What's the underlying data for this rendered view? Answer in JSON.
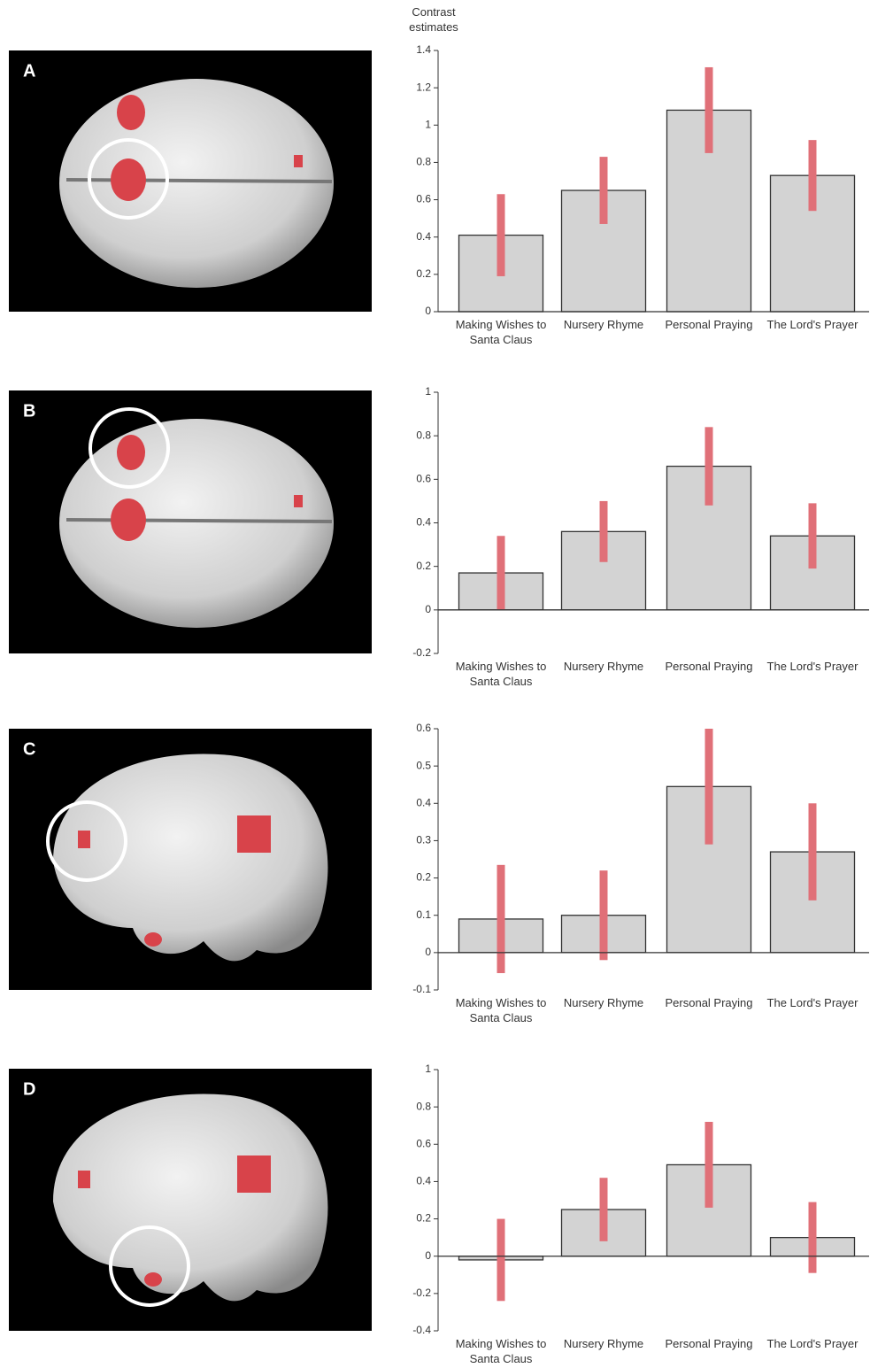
{
  "chart_data": [
    {
      "type": "bar",
      "panel": "A",
      "ylabel": "Contrast estimates",
      "categories": [
        "Making Wishes to Santa Claus",
        "Nursery Rhyme",
        "Personal Praying",
        "The Lord's Prayer"
      ],
      "values": [
        0.41,
        0.65,
        1.08,
        0.73
      ],
      "errors": [
        0.22,
        0.18,
        0.23,
        0.19
      ],
      "color": "#d3d3d3",
      "error_color": "#e07078",
      "ylim": [
        0,
        1.4
      ],
      "yticks": [
        0,
        0.2,
        0.4,
        0.6,
        0.8,
        1,
        1.2,
        1.4
      ]
    },
    {
      "type": "bar",
      "panel": "B",
      "categories": [
        "Making Wishes to Santa Claus",
        "Nursery Rhyme",
        "Personal Praying",
        "The Lord's Prayer"
      ],
      "values": [
        0.17,
        0.36,
        0.66,
        0.34
      ],
      "errors": [
        0.17,
        0.14,
        0.18,
        0.15
      ],
      "color": "#d3d3d3",
      "error_color": "#e07078",
      "ylim": [
        -0.2,
        1
      ],
      "yticks": [
        -0.2,
        0,
        0.2,
        0.4,
        0.6,
        0.8,
        1
      ]
    },
    {
      "type": "bar",
      "panel": "C",
      "categories": [
        "Making Wishes to Santa Claus",
        "Nursery Rhyme",
        "Personal Praying",
        "The Lord's Prayer"
      ],
      "values": [
        0.09,
        0.1,
        0.445,
        0.27
      ],
      "errors": [
        0.145,
        0.12,
        0.155,
        0.13
      ],
      "color": "#d3d3d3",
      "error_color": "#e07078",
      "ylim": [
        -0.1,
        0.6
      ],
      "yticks": [
        -0.1,
        0,
        0.1,
        0.2,
        0.3,
        0.4,
        0.5,
        0.6
      ]
    },
    {
      "type": "bar",
      "panel": "D",
      "categories": [
        "Making Wishes to Santa Claus",
        "Nursery Rhyme",
        "Personal Praying",
        "The Lord's Prayer"
      ],
      "values": [
        -0.02,
        0.25,
        0.49,
        0.1
      ],
      "errors": [
        0.22,
        0.17,
        0.23,
        0.19
      ],
      "color": "#d3d3d3",
      "error_color": "#e07078",
      "ylim": [
        -0.4,
        1
      ],
      "yticks": [
        -0.4,
        -0.2,
        0,
        0.2,
        0.4,
        0.6,
        0.8,
        1
      ]
    }
  ]
}
